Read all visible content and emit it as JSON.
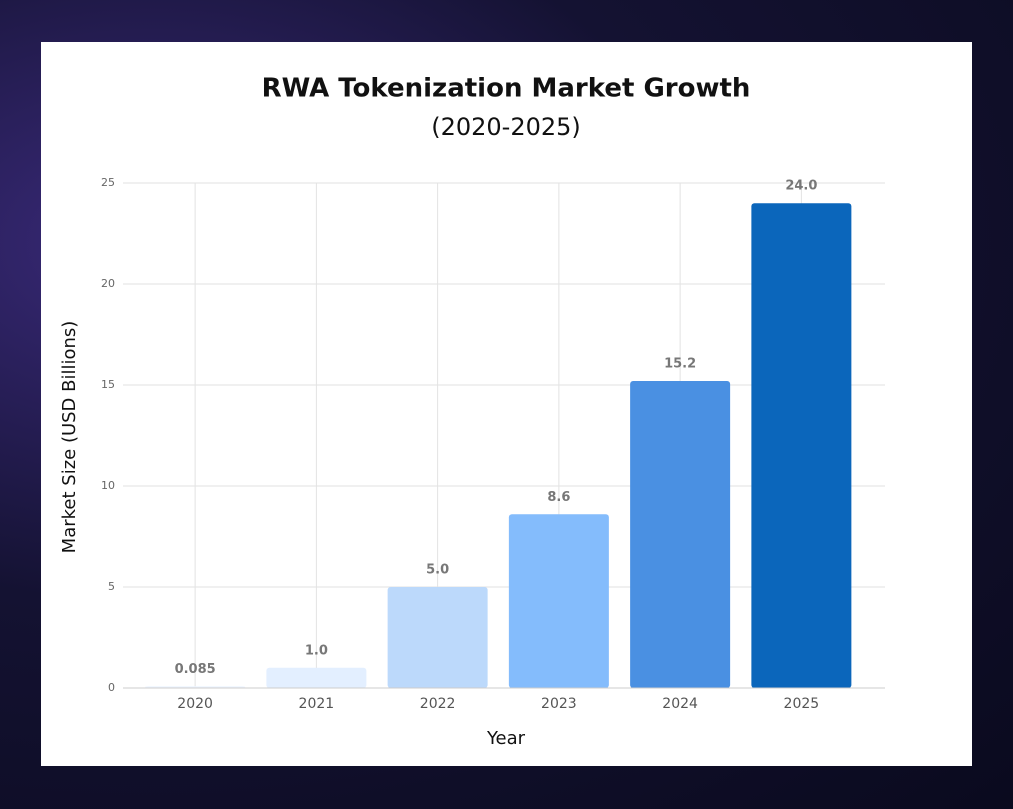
{
  "chart_data": {
    "type": "bar",
    "title": "RWA Tokenization Market Growth",
    "subtitle": "(2020-2025)",
    "x_label": "Year",
    "y_label": "Market Size (USD Billions)",
    "categories": [
      "2020",
      "2021",
      "2022",
      "2023",
      "2024",
      "2025"
    ],
    "values": [
      0.085,
      1.0,
      5.0,
      8.6,
      15.2,
      24.0
    ],
    "value_labels": [
      "0.085",
      "1.0",
      "5.0",
      "8.6",
      "15.2",
      "24.0"
    ],
    "colors": [
      "#eef5ff",
      "#e3efff",
      "#bcd9fb",
      "#84bcfc",
      "#4a90e2",
      "#0b66bb"
    ],
    "ylim": [
      0,
      25
    ],
    "yticks": [
      0,
      5,
      10,
      15,
      20,
      25
    ],
    "grid": true
  }
}
